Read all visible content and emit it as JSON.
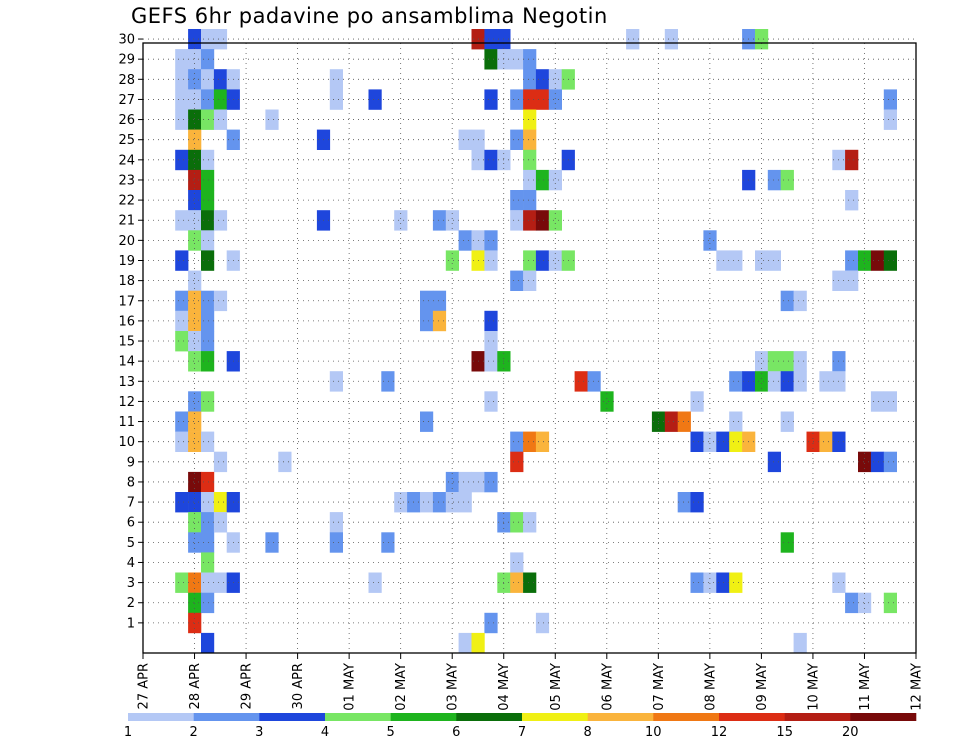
{
  "chart_data": {
    "type": "heatmap",
    "title": "GEFS 6hr padavine po ansamblima Negotin",
    "xlabel": "",
    "ylabel": "",
    "x_tick_labels": [
      "27 APR",
      "28 APR",
      "29 APR",
      "30 APR",
      "01 MAY",
      "02 MAY",
      "03 MAY",
      "04 MAY",
      "05 MAY",
      "06 MAY",
      "07 MAY",
      "08 MAY",
      "09 MAY",
      "10 MAY",
      "11 MAY",
      "12 MAY"
    ],
    "x_range_days_from_27apr": [
      0,
      15
    ],
    "y_tick_labels": [
      "1",
      "2",
      "3",
      "4",
      "5",
      "6",
      "7",
      "8",
      "9",
      "10",
      "11",
      "12",
      "13",
      "14",
      "15",
      "16",
      "17",
      "18",
      "19",
      "20",
      "21",
      "22",
      "23",
      "24",
      "25",
      "26",
      "27",
      "28",
      "29",
      "30"
    ],
    "y_range": [
      0,
      30
    ],
    "grid": "dotted",
    "colorbar": {
      "position": "bottom",
      "tick_labels": [
        "1",
        "2",
        "3",
        "4",
        "5",
        "6",
        "7",
        "8",
        "10",
        "12",
        "15",
        "20"
      ],
      "colors": [
        "#b4c8f5",
        "#6494ee",
        "#1e46dc",
        "#78e664",
        "#1eb41e",
        "#0a6e0a",
        "#f0f014",
        "#fab43c",
        "#f07814",
        "#dc2d14",
        "#b41e14",
        "#780a0a"
      ]
    },
    "notes_cell_units": "each cell: [day offset from 27 APR 00 UTC in quarter-day steps (x), ensemble member (y), color class 0-11]",
    "cells": [
      [
        4,
        30,
        2
      ],
      [
        5,
        30,
        0
      ],
      [
        6,
        30,
        0
      ],
      [
        26,
        30,
        10
      ],
      [
        27,
        30,
        2
      ],
      [
        28,
        30,
        2
      ],
      [
        38,
        30,
        0
      ],
      [
        41,
        30,
        0
      ],
      [
        47,
        30,
        1
      ],
      [
        48,
        30,
        3
      ],
      [
        3,
        29,
        0
      ],
      [
        4,
        29,
        0
      ],
      [
        5,
        29,
        1
      ],
      [
        27,
        29,
        5
      ],
      [
        28,
        29,
        0
      ],
      [
        29,
        29,
        0
      ],
      [
        30,
        29,
        1
      ],
      [
        3,
        28,
        0
      ],
      [
        4,
        28,
        1
      ],
      [
        5,
        28,
        0
      ],
      [
        6,
        28,
        2
      ],
      [
        7,
        28,
        0
      ],
      [
        15,
        28,
        0
      ],
      [
        30,
        28,
        1
      ],
      [
        31,
        28,
        2
      ],
      [
        32,
        28,
        0
      ],
      [
        33,
        28,
        3
      ],
      [
        3,
        27,
        0
      ],
      [
        4,
        27,
        0
      ],
      [
        5,
        27,
        1
      ],
      [
        6,
        27,
        4
      ],
      [
        7,
        27,
        2
      ],
      [
        15,
        27,
        0
      ],
      [
        18,
        27,
        2
      ],
      [
        27,
        27,
        2
      ],
      [
        29,
        27,
        1
      ],
      [
        30,
        27,
        9
      ],
      [
        31,
        27,
        9
      ],
      [
        32,
        27,
        1
      ],
      [
        58,
        27,
        1
      ],
      [
        3,
        26,
        0
      ],
      [
        4,
        26,
        5
      ],
      [
        5,
        26,
        3
      ],
      [
        6,
        26,
        0
      ],
      [
        10,
        26,
        0
      ],
      [
        30,
        26,
        6
      ],
      [
        58,
        26,
        0
      ],
      [
        4,
        25,
        7
      ],
      [
        7,
        25,
        1
      ],
      [
        14,
        25,
        2
      ],
      [
        25,
        25,
        0
      ],
      [
        26,
        25,
        0
      ],
      [
        29,
        25,
        1
      ],
      [
        30,
        25,
        7
      ],
      [
        3,
        24,
        2
      ],
      [
        4,
        24,
        5
      ],
      [
        5,
        24,
        0
      ],
      [
        26,
        24,
        0
      ],
      [
        27,
        24,
        2
      ],
      [
        28,
        24,
        0
      ],
      [
        30,
        24,
        3
      ],
      [
        33,
        24,
        2
      ],
      [
        54,
        24,
        0
      ],
      [
        55,
        24,
        10
      ],
      [
        4,
        23,
        10
      ],
      [
        5,
        23,
        4
      ],
      [
        30,
        23,
        0
      ],
      [
        31,
        23,
        4
      ],
      [
        32,
        23,
        0
      ],
      [
        47,
        23,
        2
      ],
      [
        49,
        23,
        1
      ],
      [
        50,
        23,
        3
      ],
      [
        4,
        22,
        2
      ],
      [
        5,
        22,
        4
      ],
      [
        29,
        22,
        1
      ],
      [
        30,
        22,
        1
      ],
      [
        55,
        22,
        0
      ],
      [
        3,
        21,
        0
      ],
      [
        4,
        21,
        0
      ],
      [
        5,
        21,
        5
      ],
      [
        6,
        21,
        0
      ],
      [
        14,
        21,
        2
      ],
      [
        20,
        21,
        0
      ],
      [
        23,
        21,
        1
      ],
      [
        24,
        21,
        0
      ],
      [
        29,
        21,
        0
      ],
      [
        30,
        21,
        10
      ],
      [
        31,
        21,
        11
      ],
      [
        32,
        21,
        3
      ],
      [
        4,
        20,
        3
      ],
      [
        5,
        20,
        0
      ],
      [
        25,
        20,
        1
      ],
      [
        26,
        20,
        0
      ],
      [
        27,
        20,
        1
      ],
      [
        44,
        20,
        1
      ],
      [
        3,
        19,
        2
      ],
      [
        5,
        19,
        5
      ],
      [
        7,
        19,
        0
      ],
      [
        24,
        19,
        3
      ],
      [
        26,
        19,
        6
      ],
      [
        27,
        19,
        0
      ],
      [
        30,
        19,
        3
      ],
      [
        31,
        19,
        2
      ],
      [
        32,
        19,
        0
      ],
      [
        33,
        19,
        3
      ],
      [
        45,
        19,
        0
      ],
      [
        46,
        19,
        0
      ],
      [
        48,
        19,
        0
      ],
      [
        49,
        19,
        0
      ],
      [
        55,
        19,
        1
      ],
      [
        56,
        19,
        4
      ],
      [
        57,
        19,
        11
      ],
      [
        58,
        19,
        5
      ],
      [
        4,
        18,
        0
      ],
      [
        29,
        18,
        1
      ],
      [
        30,
        18,
        0
      ],
      [
        54,
        18,
        0
      ],
      [
        55,
        18,
        0
      ],
      [
        3,
        17,
        1
      ],
      [
        4,
        17,
        7
      ],
      [
        5,
        17,
        1
      ],
      [
        6,
        17,
        0
      ],
      [
        22,
        17,
        1
      ],
      [
        23,
        17,
        1
      ],
      [
        50,
        17,
        1
      ],
      [
        51,
        17,
        0
      ],
      [
        3,
        16,
        0
      ],
      [
        4,
        16,
        7
      ],
      [
        5,
        16,
        1
      ],
      [
        22,
        16,
        1
      ],
      [
        23,
        16,
        7
      ],
      [
        27,
        16,
        2
      ],
      [
        3,
        15,
        3
      ],
      [
        4,
        15,
        0
      ],
      [
        5,
        15,
        1
      ],
      [
        27,
        15,
        0
      ],
      [
        4,
        14,
        3
      ],
      [
        5,
        14,
        4
      ],
      [
        7,
        14,
        2
      ],
      [
        26,
        14,
        11
      ],
      [
        27,
        14,
        0
      ],
      [
        28,
        14,
        4
      ],
      [
        48,
        14,
        0
      ],
      [
        49,
        14,
        3
      ],
      [
        50,
        14,
        3
      ],
      [
        51,
        14,
        0
      ],
      [
        54,
        14,
        1
      ],
      [
        15,
        13,
        0
      ],
      [
        19,
        13,
        1
      ],
      [
        34,
        13,
        9
      ],
      [
        35,
        13,
        1
      ],
      [
        46,
        13,
        1
      ],
      [
        47,
        13,
        2
      ],
      [
        48,
        13,
        4
      ],
      [
        49,
        13,
        0
      ],
      [
        50,
        13,
        2
      ],
      [
        51,
        13,
        0
      ],
      [
        53,
        13,
        0
      ],
      [
        54,
        13,
        0
      ],
      [
        4,
        12,
        1
      ],
      [
        5,
        12,
        3
      ],
      [
        27,
        12,
        0
      ],
      [
        36,
        12,
        4
      ],
      [
        43,
        12,
        0
      ],
      [
        57,
        12,
        0
      ],
      [
        58,
        12,
        0
      ],
      [
        3,
        11,
        1
      ],
      [
        4,
        11,
        7
      ],
      [
        22,
        11,
        1
      ],
      [
        40,
        11,
        5
      ],
      [
        41,
        11,
        10
      ],
      [
        42,
        11,
        8
      ],
      [
        46,
        11,
        0
      ],
      [
        50,
        11,
        0
      ],
      [
        3,
        10,
        0
      ],
      [
        4,
        10,
        7
      ],
      [
        5,
        10,
        0
      ],
      [
        29,
        10,
        1
      ],
      [
        30,
        10,
        8
      ],
      [
        31,
        10,
        7
      ],
      [
        43,
        10,
        2
      ],
      [
        44,
        10,
        0
      ],
      [
        45,
        10,
        2
      ],
      [
        46,
        10,
        6
      ],
      [
        47,
        10,
        7
      ],
      [
        52,
        10,
        9
      ],
      [
        53,
        10,
        7
      ],
      [
        54,
        10,
        2
      ],
      [
        6,
        9,
        0
      ],
      [
        11,
        9,
        0
      ],
      [
        29,
        9,
        9
      ],
      [
        49,
        9,
        2
      ],
      [
        56,
        9,
        11
      ],
      [
        57,
        9,
        2
      ],
      [
        58,
        9,
        1
      ],
      [
        4,
        8,
        11
      ],
      [
        5,
        8,
        9
      ],
      [
        24,
        8,
        1
      ],
      [
        25,
        8,
        0
      ],
      [
        26,
        8,
        0
      ],
      [
        27,
        8,
        1
      ],
      [
        3,
        7,
        2
      ],
      [
        4,
        7,
        2
      ],
      [
        5,
        7,
        0
      ],
      [
        6,
        7,
        6
      ],
      [
        7,
        7,
        2
      ],
      [
        20,
        7,
        0
      ],
      [
        21,
        7,
        1
      ],
      [
        22,
        7,
        0
      ],
      [
        23,
        7,
        1
      ],
      [
        24,
        7,
        0
      ],
      [
        25,
        7,
        0
      ],
      [
        42,
        7,
        1
      ],
      [
        43,
        7,
        2
      ],
      [
        4,
        6,
        3
      ],
      [
        5,
        6,
        1
      ],
      [
        6,
        6,
        0
      ],
      [
        15,
        6,
        0
      ],
      [
        28,
        6,
        1
      ],
      [
        29,
        6,
        3
      ],
      [
        30,
        6,
        0
      ],
      [
        4,
        5,
        1
      ],
      [
        5,
        5,
        1
      ],
      [
        7,
        5,
        0
      ],
      [
        10,
        5,
        1
      ],
      [
        15,
        5,
        1
      ],
      [
        19,
        5,
        1
      ],
      [
        50,
        5,
        4
      ],
      [
        5,
        4,
        3
      ],
      [
        29,
        4,
        0
      ],
      [
        3,
        3,
        3
      ],
      [
        4,
        3,
        8
      ],
      [
        5,
        3,
        0
      ],
      [
        6,
        3,
        0
      ],
      [
        7,
        3,
        2
      ],
      [
        18,
        3,
        0
      ],
      [
        28,
        3,
        3
      ],
      [
        29,
        3,
        7
      ],
      [
        30,
        3,
        5
      ],
      [
        43,
        3,
        1
      ],
      [
        44,
        3,
        0
      ],
      [
        45,
        3,
        2
      ],
      [
        46,
        3,
        6
      ],
      [
        54,
        3,
        0
      ],
      [
        4,
        2,
        4
      ],
      [
        5,
        2,
        1
      ],
      [
        55,
        2,
        1
      ],
      [
        56,
        2,
        0
      ],
      [
        58,
        2,
        3
      ],
      [
        4,
        1,
        9
      ],
      [
        27,
        1,
        1
      ],
      [
        31,
        1,
        0
      ],
      [
        5,
        0,
        2
      ],
      [
        25,
        0,
        0
      ],
      [
        26,
        0,
        6
      ],
      [
        51,
        0,
        0
      ]
    ]
  }
}
